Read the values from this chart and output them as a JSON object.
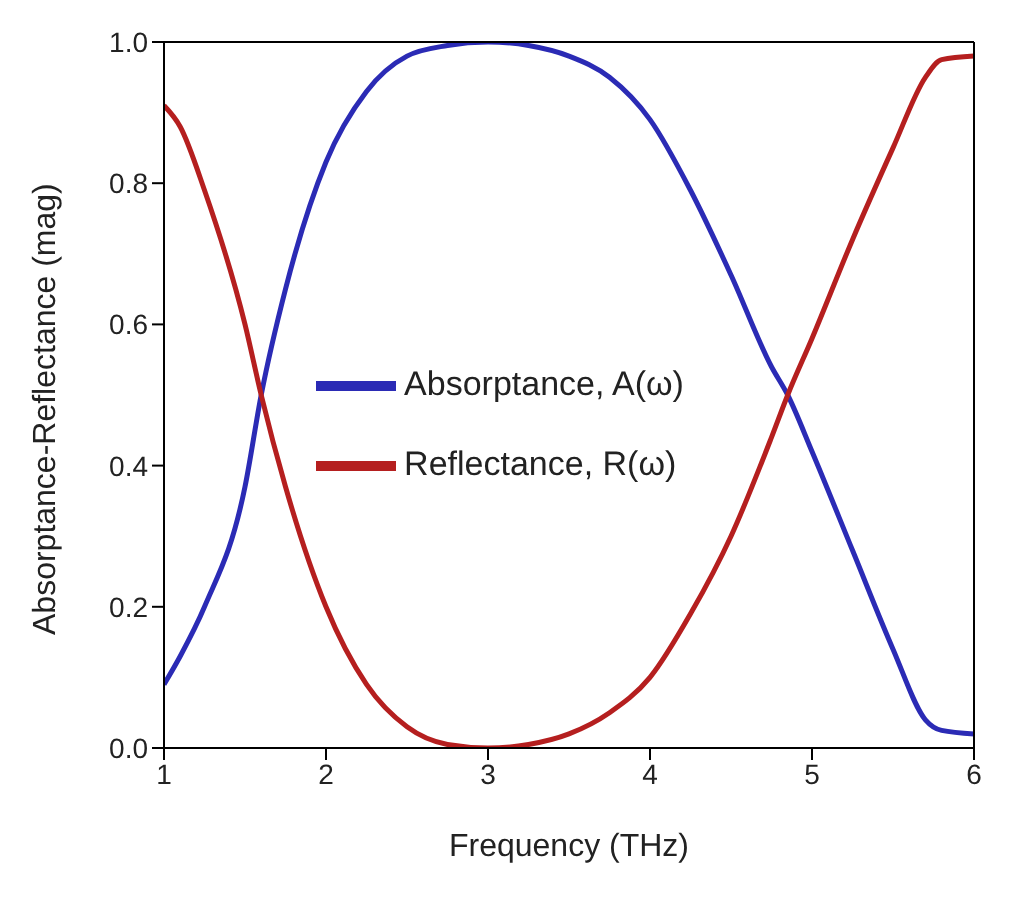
{
  "chart_data": {
    "type": "line",
    "xlabel": "Frequency (THz)",
    "ylabel": "Absorptance-Reflectance (mag)",
    "xlim": [
      1,
      6
    ],
    "xticks": [
      1,
      2,
      3,
      4,
      5,
      6
    ],
    "ylim": [
      0,
      1
    ],
    "yticks": [
      {
        "value": 0,
        "label": "0.0"
      },
      {
        "value": 0.2,
        "label": "0.2"
      },
      {
        "value": 0.4,
        "label": "0.4"
      },
      {
        "value": 0.6,
        "label": "0.6"
      },
      {
        "value": 0.8,
        "label": "0.8"
      },
      {
        "value": 1,
        "label": "1.0"
      }
    ],
    "x": [
      1,
      1.1,
      1.25,
      1.5,
      1.6,
      1.75,
      2,
      2.25,
      2.5,
      2.75,
      3,
      3.25,
      3.5,
      3.75,
      4,
      4.25,
      4.5,
      4.75,
      4.85,
      5,
      5.25,
      5.5,
      5.7,
      5.8,
      6
    ],
    "series": [
      {
        "name": "Absorptance, A(ω)",
        "color": "#2b2bb5",
        "values": [
          0.09,
          0.13,
          0.2,
          0.37,
          0.5,
          0.65,
          0.83,
          0.93,
          0.98,
          0.995,
          1,
          0.995,
          0.98,
          0.95,
          0.89,
          0.79,
          0.67,
          0.54,
          0.5,
          0.42,
          0.28,
          0.14,
          0.04,
          0.025,
          0.02
        ]
      },
      {
        "name": "Reflectance,  R(ω)",
        "color": "#b51f1f",
        "values": [
          0.91,
          0.88,
          0.79,
          0.6,
          0.5,
          0.37,
          0.2,
          0.09,
          0.03,
          0.005,
          0,
          0.005,
          0.02,
          0.05,
          0.1,
          0.19,
          0.3,
          0.44,
          0.5,
          0.58,
          0.72,
          0.85,
          0.95,
          0.975,
          0.98
        ]
      }
    ],
    "grid": false,
    "legend": "center",
    "marker": "none",
    "line_style": "solid"
  }
}
